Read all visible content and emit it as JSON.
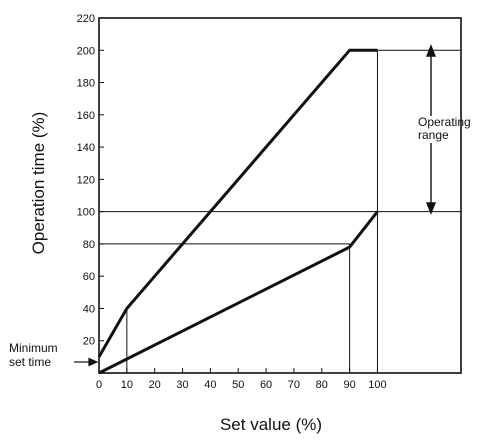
{
  "chart_data": {
    "type": "line",
    "xlabel": "Set value (%)",
    "ylabel": "Operation time  (%)",
    "xlim": [
      0,
      130
    ],
    "ylim": [
      0,
      220
    ],
    "x_ticks": [
      "0",
      "10",
      "20",
      "30",
      "40",
      "50",
      "60",
      "70",
      "80",
      "90",
      "100"
    ],
    "y_ticks": [
      "20",
      "40",
      "60",
      "80",
      "100",
      "120",
      "140",
      "160",
      "180",
      "200",
      "220"
    ],
    "series": [
      {
        "points": [
          [
            0,
            10
          ],
          [
            10,
            40
          ],
          [
            90,
            200
          ],
          [
            100,
            200
          ]
        ]
      },
      {
        "points": [
          [
            0,
            0
          ],
          [
            90,
            78
          ],
          [
            100,
            100
          ]
        ]
      }
    ],
    "reference_lines": {
      "horizontal": [
        {
          "y": 200,
          "x_from": 90,
          "x_to": 130
        },
        {
          "y": 100,
          "x_from": 0,
          "x_to": 130
        },
        {
          "y": 80,
          "x_from": 0,
          "x_to": 90
        }
      ],
      "vertical": [
        {
          "x": 10,
          "y_from": 0,
          "y_to": 40
        },
        {
          "x": 90,
          "y_from": 0,
          "y_to": 80
        },
        {
          "x": 100,
          "y_from": 0,
          "y_to": 200
        }
      ]
    },
    "annotations": {
      "operating_range": [
        "Operating",
        "range"
      ],
      "minimum_set_time": [
        "Minimum",
        "set time"
      ]
    }
  }
}
